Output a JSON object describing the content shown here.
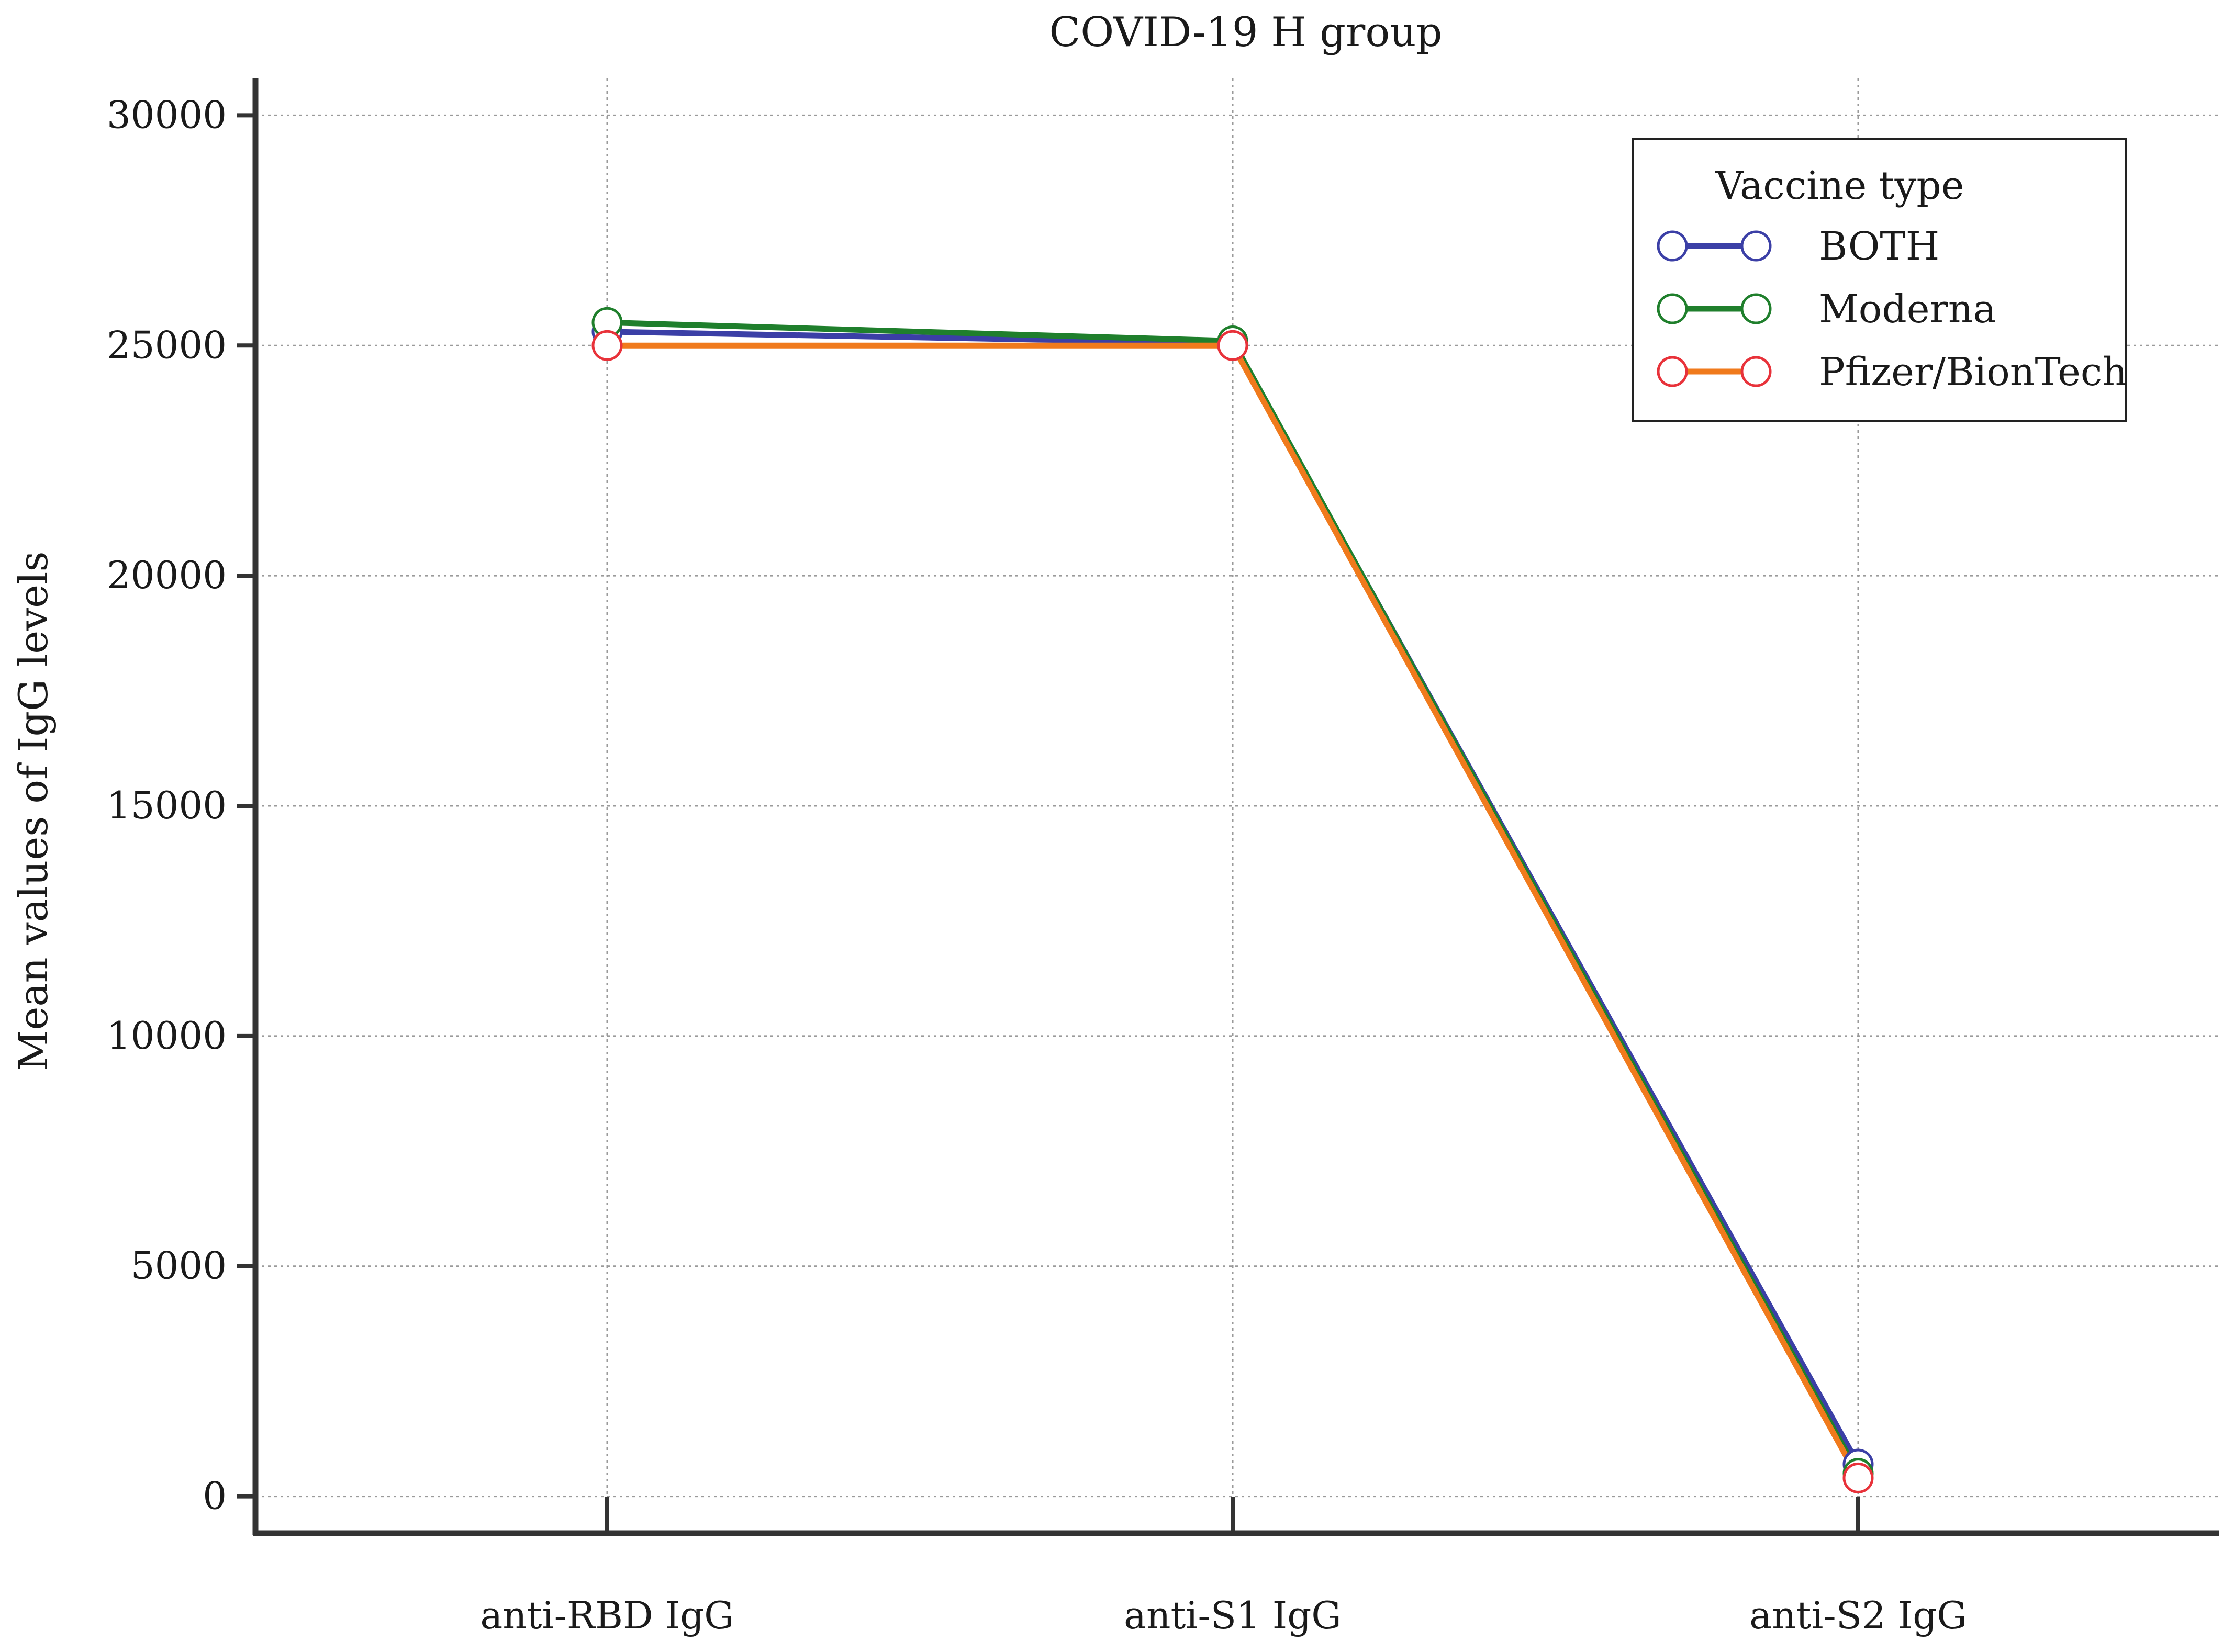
{
  "chart_data": {
    "type": "line",
    "title": "COVID-19 H group",
    "xlabel": "",
    "ylabel": "Mean values of IgG levels",
    "categories": [
      "anti-RBD IgG",
      "anti-S1 IgG",
      "anti-S2 IgG"
    ],
    "ylim": [
      -800,
      30800
    ],
    "yticks": [
      0,
      5000,
      10000,
      15000,
      20000,
      25000,
      30000
    ],
    "ytick_labels": [
      "0",
      "5000",
      "10000",
      "15000",
      "20000",
      "25000",
      "30000"
    ],
    "grid": true,
    "legend": {
      "title": "Vaccine type",
      "placement": "top-right"
    },
    "series": [
      {
        "name": "BOTH",
        "color": "#3b3fa6",
        "values": [
          25300,
          25050,
          700
        ]
      },
      {
        "name": "Moderna",
        "color": "#1f7f2c",
        "values": [
          25500,
          25100,
          500
        ]
      },
      {
        "name": "Pfizer/BionTech",
        "color": "#f07a1c",
        "marker_color": "#e8323a",
        "values": [
          25000,
          25000,
          400
        ]
      }
    ]
  }
}
